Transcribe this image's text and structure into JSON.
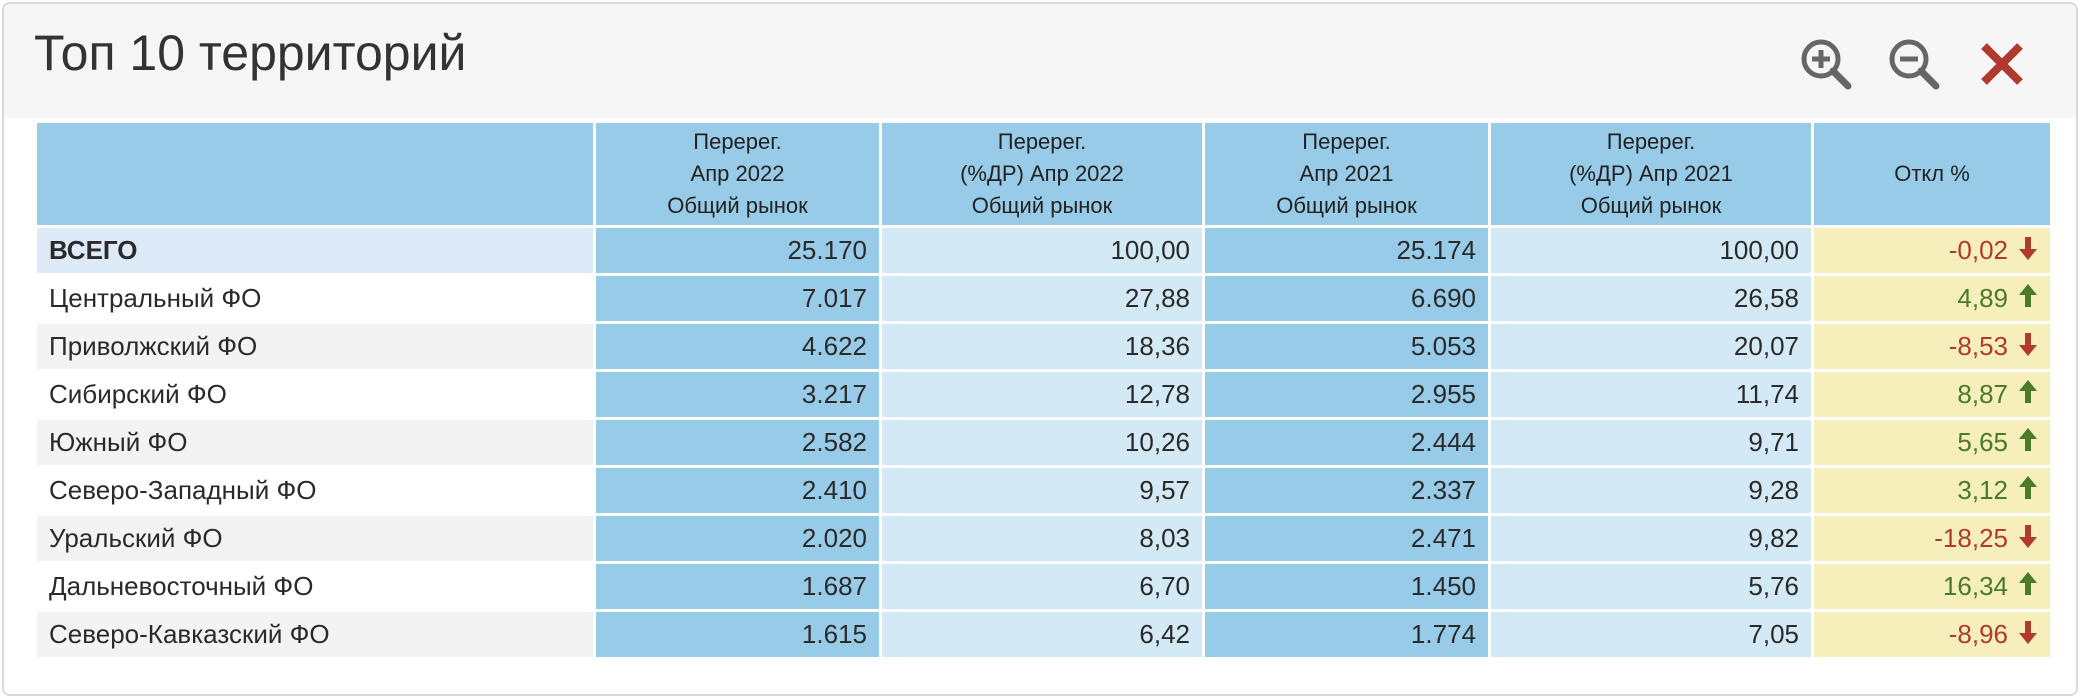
{
  "window": {
    "title": "Топ 10 территорий"
  },
  "toolbar": {
    "zoom_in_icon": "zoom-in-icon",
    "zoom_out_icon": "zoom-out-icon",
    "close_icon": "close-icon"
  },
  "colors": {
    "header_cell": "#97cbe8",
    "light_cell": "#d3e9f5",
    "deviation_cell": "#f6eebb",
    "negative": "#b03a2e",
    "positive": "#4a7a2a",
    "close_red": "#b03a2e"
  },
  "table": {
    "columns": [
      {
        "line1": "",
        "line2": "",
        "line3": ""
      },
      {
        "line1": "Перерег.",
        "line2": "Апр 2022",
        "line3": "Общий рынок"
      },
      {
        "line1": "Перерег.",
        "line2": "(%ДР) Апр 2022",
        "line3": "Общий рынок"
      },
      {
        "line1": "Перерег.",
        "line2": "Апр 2021",
        "line3": "Общий рынок"
      },
      {
        "line1": "Перерег.",
        "line2": "(%ДР) Апр 2021",
        "line3": "Общий рынок"
      },
      {
        "line1": "",
        "line2": "Откл %",
        "line3": ""
      }
    ],
    "rows": [
      {
        "name": "ВСЕГО",
        "v1": "25.170",
        "v2": "100,00",
        "v3": "25.174",
        "v4": "100,00",
        "dev": "-0,02",
        "trend": "down"
      },
      {
        "name": "Центральный ФО",
        "v1": "7.017",
        "v2": "27,88",
        "v3": "6.690",
        "v4": "26,58",
        "dev": "4,89",
        "trend": "up"
      },
      {
        "name": "Приволжский ФО",
        "v1": "4.622",
        "v2": "18,36",
        "v3": "5.053",
        "v4": "20,07",
        "dev": "-8,53",
        "trend": "down"
      },
      {
        "name": "Сибирский ФО",
        "v1": "3.217",
        "v2": "12,78",
        "v3": "2.955",
        "v4": "11,74",
        "dev": "8,87",
        "trend": "up"
      },
      {
        "name": "Южный ФО",
        "v1": "2.582",
        "v2": "10,26",
        "v3": "2.444",
        "v4": "9,71",
        "dev": "5,65",
        "trend": "up"
      },
      {
        "name": "Северо-Западный ФО",
        "v1": "2.410",
        "v2": "9,57",
        "v3": "2.337",
        "v4": "9,28",
        "dev": "3,12",
        "trend": "up"
      },
      {
        "name": "Уральский ФО",
        "v1": "2.020",
        "v2": "8,03",
        "v3": "2.471",
        "v4": "9,82",
        "dev": "-18,25",
        "trend": "down"
      },
      {
        "name": "Дальневосточный ФО",
        "v1": "1.687",
        "v2": "6,70",
        "v3": "1.450",
        "v4": "5,76",
        "dev": "16,34",
        "trend": "up"
      },
      {
        "name": "Северо-Кавказский ФО",
        "v1": "1.615",
        "v2": "6,42",
        "v3": "1.774",
        "v4": "7,05",
        "dev": "-8,96",
        "trend": "down"
      }
    ]
  }
}
